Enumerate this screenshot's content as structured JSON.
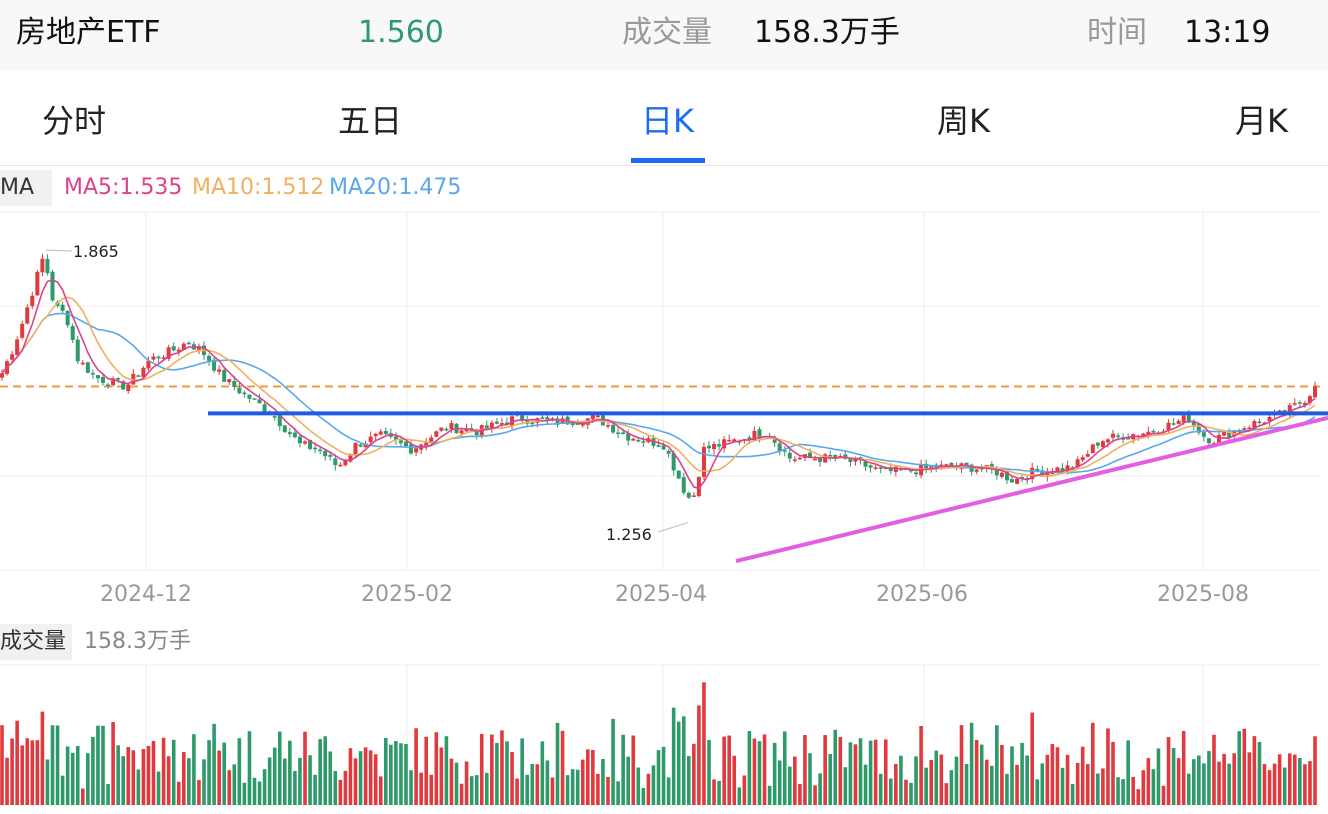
{
  "header": {
    "name": "房地产ETF",
    "price": "1.560",
    "volume_label": "成交量",
    "volume_value": "158.3万手",
    "time_label": "时间",
    "time_value": "13:19"
  },
  "tabs": [
    {
      "label": "分时",
      "active": false
    },
    {
      "label": "五日",
      "active": false
    },
    {
      "label": "日K",
      "active": true
    },
    {
      "label": "周K",
      "active": false
    },
    {
      "label": "月K",
      "active": false
    }
  ],
  "ma_bar": {
    "button": "MA",
    "ma5": "MA5:1.535",
    "ma10": "MA10:1.512",
    "ma20": "MA20:1.475"
  },
  "volume_bar": {
    "button": "成交量",
    "value": "158.3万手"
  },
  "colors": {
    "up": "#e0393e",
    "down": "#2e9a6a",
    "price_green": "#2e9a6a",
    "ma5": "#e0408a",
    "ma10": "#f0b060",
    "ma20": "#5aa8ea",
    "resistance": "#1f5ce6",
    "trend": "#e35ee3",
    "prev_close_line": "#f09a3c",
    "active_tab": "#1a6cf0"
  },
  "chart_data": {
    "type": "candlestick",
    "x_ticks": [
      "2024-12",
      "2025-02",
      "2025-04",
      "2025-06",
      "2025-08"
    ],
    "ylim": [
      1.15,
      1.95
    ],
    "annotations": [
      {
        "label": "1.865",
        "value": 1.865
      },
      {
        "label": "1.256",
        "value": 1.256
      }
    ],
    "reference_line": 1.56,
    "resistance_line": 1.5,
    "trend_line": {
      "from": 1.17,
      "to": 1.49
    },
    "moving_averages": {
      "MA5": 1.535,
      "MA10": 1.512,
      "MA20": 1.475
    },
    "last_volume": "158.3万手",
    "grid": true
  }
}
